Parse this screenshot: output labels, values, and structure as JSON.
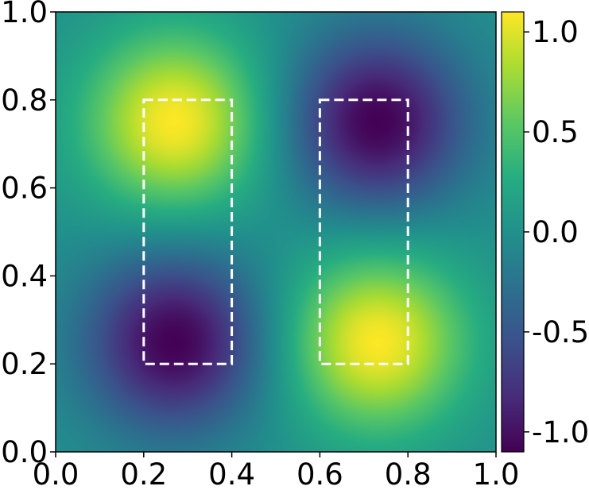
{
  "chart_data": {
    "type": "heatmap",
    "title": "",
    "xlabel": "",
    "ylabel": "",
    "xlim": [
      0.0,
      1.0
    ],
    "ylim": [
      0.0,
      1.0
    ],
    "x_ticks": [
      "0.0",
      "0.2",
      "0.4",
      "0.6",
      "0.8",
      "1.0"
    ],
    "y_ticks": [
      "0.0",
      "0.2",
      "0.4",
      "0.6",
      "0.8",
      "1.0"
    ],
    "x_tick_values": [
      0.0,
      0.2,
      0.4,
      0.6,
      0.8,
      1.0
    ],
    "y_tick_values": [
      0.0,
      0.2,
      0.4,
      0.6,
      0.8,
      1.0
    ],
    "colormap": "viridis",
    "color_range": [
      -1.1,
      1.1
    ],
    "colorbar_ticks": [
      "1.0",
      "0.5",
      "0.0",
      "-0.5",
      "-1.0"
    ],
    "colorbar_tick_values": [
      1.0,
      0.5,
      0.0,
      -0.5,
      -1.0
    ],
    "field": {
      "description_of_surface": "sinusoidal field with two maxima and two minima",
      "extrema": [
        {
          "x": 0.27,
          "y": 0.75,
          "value": 1.1
        },
        {
          "x": 0.73,
          "y": 0.25,
          "value": 1.1
        },
        {
          "x": 0.27,
          "y": 0.25,
          "value": -1.1
        },
        {
          "x": 0.73,
          "y": 0.75,
          "value": -1.1
        }
      ]
    },
    "regions": [
      {
        "x0": 0.2,
        "x1": 0.4,
        "y0": 0.2,
        "y1": 0.8,
        "style": "dashed",
        "color": "#ffffff"
      },
      {
        "x0": 0.6,
        "x1": 0.8,
        "y0": 0.2,
        "y1": 0.8,
        "style": "dashed",
        "color": "#ffffff"
      }
    ],
    "grid": false
  }
}
